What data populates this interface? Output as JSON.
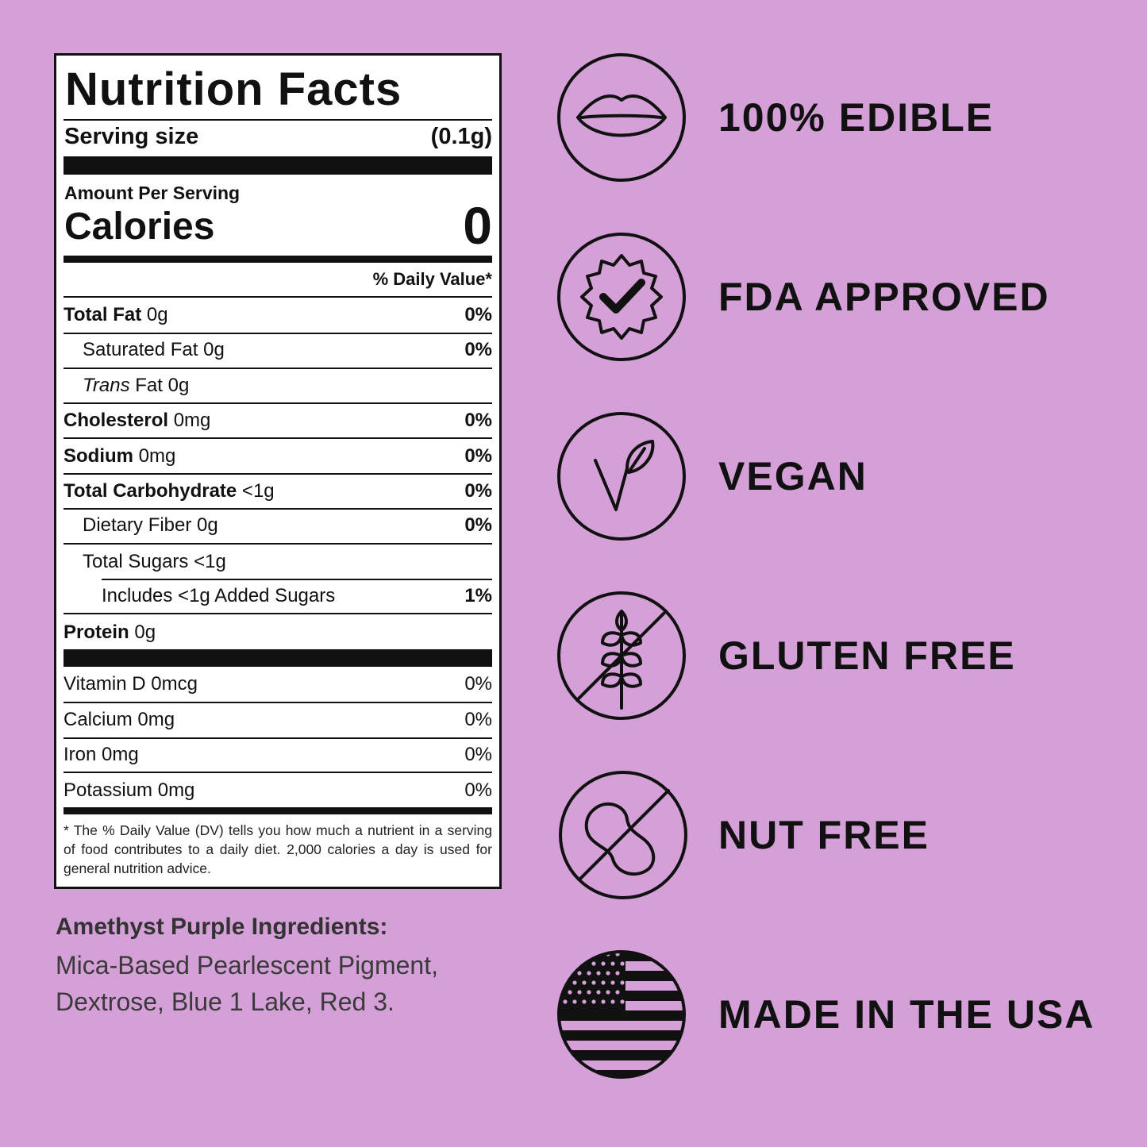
{
  "nutrition_label": {
    "title": "Nutrition Facts",
    "serving_size_label": "Serving size",
    "serving_size": "(0.1g)",
    "amount_per_serving": "Amount Per Serving",
    "calories_label": "Calories",
    "calories": "0",
    "daily_value_header": "% Daily Value*",
    "nutrients": [
      {
        "name": "Total Fat",
        "amount": "0g",
        "dv": "0%"
      },
      {
        "name": "Saturated Fat",
        "amount": "0g",
        "dv": "0%"
      },
      {
        "italic": "Trans",
        "name": "Fat",
        "amount": "0g"
      },
      {
        "name": "Cholesterol",
        "amount": "0mg",
        "dv": "0%"
      },
      {
        "name": "Sodium",
        "amount": "0mg",
        "dv": "0%"
      },
      {
        "name": "Total Carbohydrate",
        "amount": "<1g",
        "dv": "0%"
      },
      {
        "name": "Dietary Fiber",
        "amount": "0g",
        "dv": "0%"
      },
      {
        "name": "Total Sugars",
        "amount": "<1g"
      },
      {
        "name": "Includes <1g Added Sugars",
        "dv": "1%"
      },
      {
        "name": "Protein",
        "amount": "0g"
      }
    ],
    "vitamins": [
      {
        "name": "Vitamin D",
        "amount": "0mcg",
        "dv": "0%"
      },
      {
        "name": "Calcium",
        "amount": "0mg",
        "dv": "0%"
      },
      {
        "name": "Iron",
        "amount": "0mg",
        "dv": "0%"
      },
      {
        "name": "Potassium",
        "amount": "0mg",
        "dv": "0%"
      }
    ],
    "footnote": "* The % Daily Value (DV) tells you how much a nutrient in a serving of food contributes to a daily diet. 2,000 calories a day is used for general nutrition advice."
  },
  "ingredients": {
    "title": "Amethyst Purple Ingredients:",
    "lines": [
      "Mica-Based Pearlescent Pigment,",
      "Dextrose, Blue 1 Lake, Red 3."
    ]
  },
  "badges": [
    "100% EDIBLE",
    "FDA APPROVED",
    "VEGAN",
    "GLUTEN FREE",
    "NUT FREE",
    "MADE IN THE USA"
  ]
}
